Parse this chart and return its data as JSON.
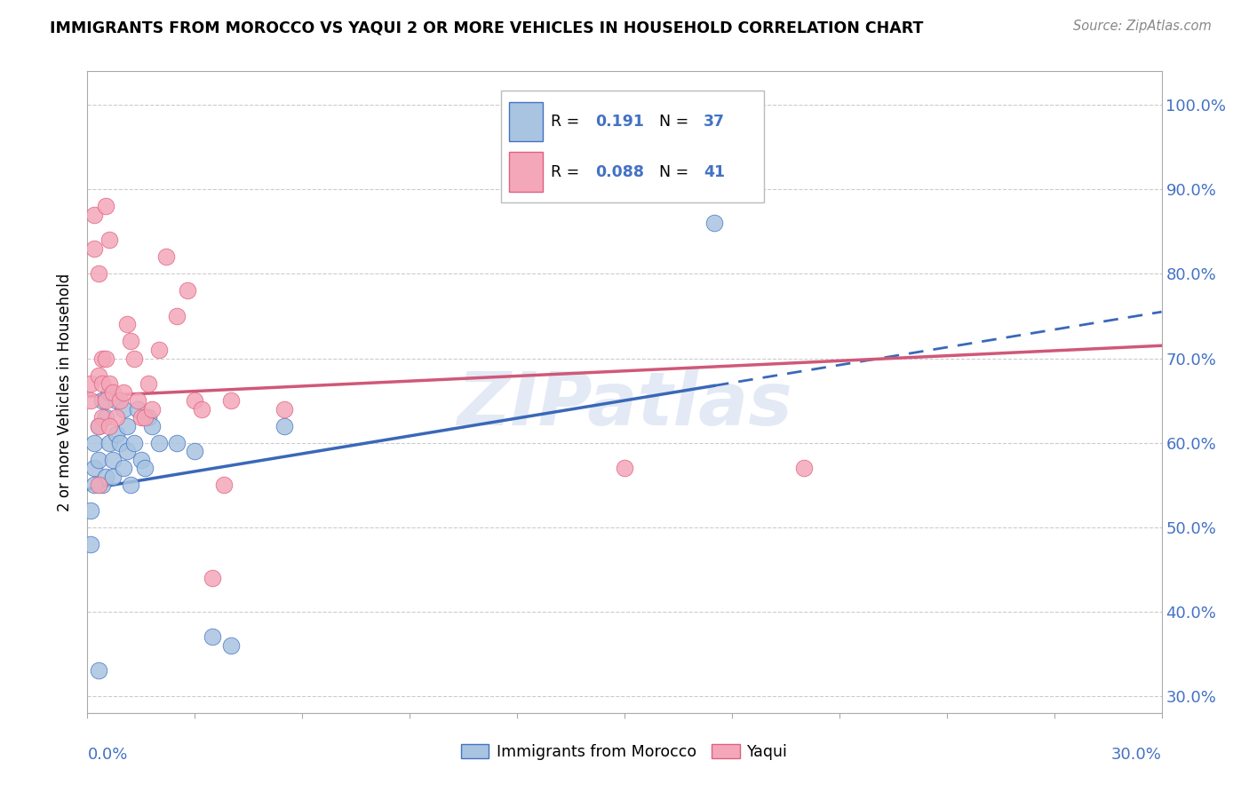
{
  "title": "IMMIGRANTS FROM MOROCCO VS YAQUI 2 OR MORE VEHICLES IN HOUSEHOLD CORRELATION CHART",
  "source": "Source: ZipAtlas.com",
  "legend_label1": "Immigrants from Morocco",
  "legend_label2": "Yaqui",
  "R1": "0.191",
  "N1": "37",
  "R2": "0.088",
  "N2": "41",
  "color_blue": "#a8c4e0",
  "color_pink": "#f4a7b9",
  "color_blue_text": "#4472c4",
  "color_pink_text": "#e06080",
  "color_blue_dark": "#3a68b8",
  "color_pink_dark": "#d05878",
  "watermark": "ZIPatlas",
  "xmin": 0.0,
  "xmax": 0.3,
  "ymin": 0.28,
  "ymax": 1.04,
  "ytick_vals": [
    0.3,
    0.4,
    0.5,
    0.6,
    0.7,
    0.8,
    0.9,
    1.0
  ],
  "blue_line_x0": 0.0,
  "blue_line_y0": 0.545,
  "blue_line_x1": 0.3,
  "blue_line_y1": 0.755,
  "blue_line_solid_end": 0.175,
  "pink_line_x0": 0.0,
  "pink_line_y0": 0.655,
  "pink_line_x1": 0.3,
  "pink_line_y1": 0.715,
  "blue_x": [
    0.001,
    0.002,
    0.002,
    0.003,
    0.003,
    0.004,
    0.004,
    0.005,
    0.005,
    0.006,
    0.006,
    0.007,
    0.007,
    0.008,
    0.008,
    0.009,
    0.01,
    0.01,
    0.011,
    0.011,
    0.012,
    0.013,
    0.014,
    0.015,
    0.016,
    0.017,
    0.018,
    0.02,
    0.025,
    0.03,
    0.035,
    0.04,
    0.055,
    0.175,
    0.001,
    0.002,
    0.003
  ],
  "blue_y": [
    0.52,
    0.57,
    0.6,
    0.58,
    0.62,
    0.55,
    0.65,
    0.63,
    0.56,
    0.66,
    0.6,
    0.58,
    0.56,
    0.61,
    0.65,
    0.6,
    0.57,
    0.64,
    0.59,
    0.62,
    0.55,
    0.6,
    0.64,
    0.58,
    0.57,
    0.63,
    0.62,
    0.6,
    0.6,
    0.59,
    0.37,
    0.36,
    0.62,
    0.86,
    0.48,
    0.55,
    0.33
  ],
  "pink_x": [
    0.001,
    0.001,
    0.002,
    0.002,
    0.003,
    0.003,
    0.004,
    0.004,
    0.005,
    0.005,
    0.006,
    0.006,
    0.007,
    0.008,
    0.009,
    0.01,
    0.011,
    0.012,
    0.013,
    0.014,
    0.015,
    0.016,
    0.017,
    0.018,
    0.02,
    0.022,
    0.025,
    0.028,
    0.03,
    0.032,
    0.035,
    0.038,
    0.04,
    0.055,
    0.15,
    0.2,
    0.003,
    0.003,
    0.004,
    0.005,
    0.006
  ],
  "pink_y": [
    0.67,
    0.65,
    0.83,
    0.87,
    0.8,
    0.68,
    0.67,
    0.63,
    0.88,
    0.65,
    0.84,
    0.67,
    0.66,
    0.63,
    0.65,
    0.66,
    0.74,
    0.72,
    0.7,
    0.65,
    0.63,
    0.63,
    0.67,
    0.64,
    0.71,
    0.82,
    0.75,
    0.78,
    0.65,
    0.64,
    0.44,
    0.55,
    0.65,
    0.64,
    0.57,
    0.57,
    0.62,
    0.55,
    0.7,
    0.7,
    0.62
  ]
}
